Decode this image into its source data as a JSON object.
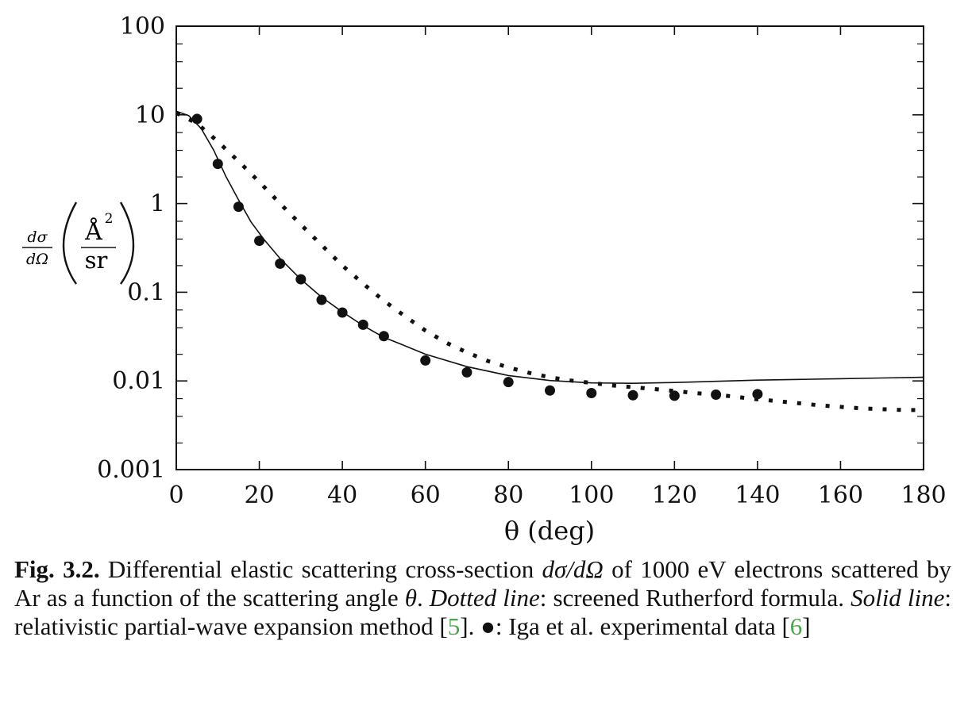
{
  "chart_data": {
    "type": "scatter",
    "x_range": [
      0,
      180
    ],
    "y_range": [
      0.001,
      100
    ],
    "y_scale": "log",
    "x_ticks": [
      0,
      20,
      40,
      60,
      80,
      100,
      120,
      140,
      160,
      180
    ],
    "x_tick_labels": [
      "0",
      "20",
      "40",
      "60",
      "80",
      "100",
      "120",
      "140",
      "160",
      "180"
    ],
    "y_ticks": [
      0.001,
      0.01,
      0.1,
      1,
      10,
      100
    ],
    "y_tick_labels": [
      "0.001",
      "0.01",
      "0.1",
      "1",
      "10",
      "100"
    ],
    "xlabel": "θ (deg)",
    "ylabel": "dσ/dΩ (Å²/sr)",
    "grid": false,
    "series": [
      {
        "name": "Dotted line",
        "style": "dotted",
        "x": [
          0,
          5,
          10,
          15,
          20,
          25,
          30,
          35,
          40,
          45,
          50,
          55,
          60,
          65,
          70,
          75,
          80,
          85,
          90,
          95,
          100,
          105,
          110,
          115,
          120,
          125,
          130,
          135,
          140,
          145,
          150,
          155,
          160,
          165,
          170,
          175,
          180
        ],
        "y": [
          10.5,
          8.0,
          5.0,
          3.0,
          1.75,
          1.0,
          0.58,
          0.34,
          0.2,
          0.125,
          0.08,
          0.054,
          0.037,
          0.027,
          0.021,
          0.0168,
          0.0142,
          0.0123,
          0.011,
          0.0101,
          0.0095,
          0.0089,
          0.0085,
          0.0081,
          0.0077,
          0.0073,
          0.007,
          0.0066,
          0.0062,
          0.0059,
          0.0056,
          0.0053,
          0.0051,
          0.0049,
          0.0048,
          0.0047,
          0.0047
        ]
      },
      {
        "name": "Solid line",
        "style": "solid",
        "x": [
          0,
          3,
          6,
          9,
          12,
          15,
          18,
          21,
          25,
          30,
          35,
          40,
          45,
          50,
          55,
          60,
          70,
          80,
          90,
          100,
          110,
          120,
          130,
          140,
          150,
          160,
          170,
          180
        ],
        "y": [
          11,
          9.8,
          7.0,
          4.0,
          2.0,
          1.1,
          0.62,
          0.4,
          0.24,
          0.14,
          0.088,
          0.06,
          0.042,
          0.031,
          0.025,
          0.02,
          0.0145,
          0.0115,
          0.0101,
          0.0095,
          0.0094,
          0.0096,
          0.0099,
          0.0102,
          0.0104,
          0.0106,
          0.0108,
          0.011
        ]
      },
      {
        "name": "Iga et al. experimental data",
        "style": "markers",
        "x": [
          5,
          10,
          15,
          20,
          25,
          30,
          35,
          40,
          45,
          50,
          60,
          70,
          80,
          90,
          100,
          110,
          120,
          130,
          140
        ],
        "y": [
          9.0,
          2.8,
          0.92,
          0.38,
          0.21,
          0.14,
          0.082,
          0.059,
          0.043,
          0.032,
          0.017,
          0.0125,
          0.0097,
          0.0078,
          0.0073,
          0.0069,
          0.0068,
          0.007,
          0.0071
        ]
      }
    ]
  },
  "caption": {
    "fig_label": "Fig. 3.2.",
    "text_1": " Differential elastic scattering cross-section ",
    "math_dsigma": "dσ/dΩ",
    "text_2": " of 1000 eV electrons scattered by Ar as a function of the scattering angle ",
    "math_theta": "θ",
    "text_3": ". ",
    "dotted_label": "Dotted line",
    "text_4": ": screened Rutherford formula. ",
    "solid_label": "Solid line",
    "text_5": ": relativistic partial-wave expansion method [",
    "ref_1": "5",
    "text_6": "]. ",
    "bullet": "●",
    "text_7": ": Iga et al. experimental data [",
    "ref_2": "6",
    "text_8": "]"
  },
  "ylabel_parts": {
    "frac_num": "dσ",
    "frac_den": "dΩ",
    "unit_num": "Å",
    "unit_sup": "2",
    "unit_den": "sr"
  },
  "colors": {
    "ink": "#111111",
    "reference": "#4aa84a"
  }
}
